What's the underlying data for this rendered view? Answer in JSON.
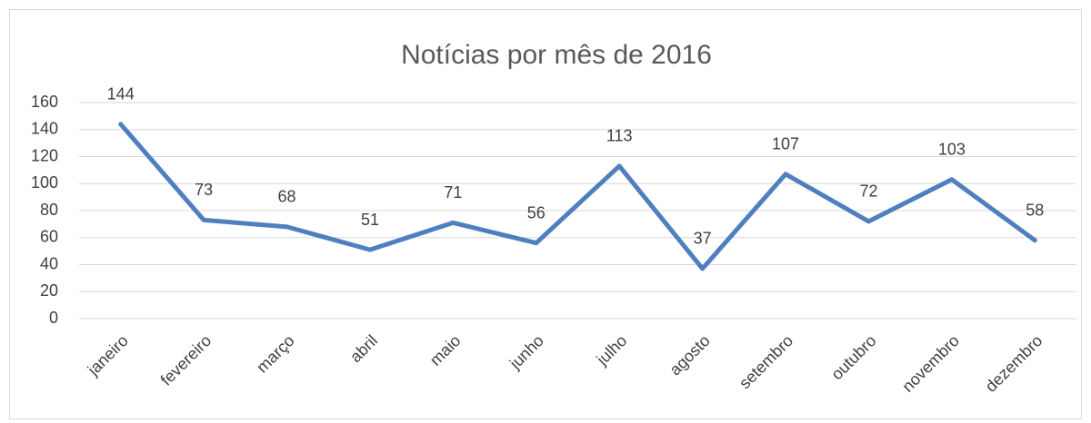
{
  "chart_data": {
    "type": "line",
    "title": "Notícias por mês de 2016",
    "categories": [
      "janeiro",
      "fevereiro",
      "março",
      "abril",
      "maio",
      "junho",
      "julho",
      "agosto",
      "setembro",
      "outubro",
      "novembro",
      "dezembro"
    ],
    "values": [
      144,
      73,
      68,
      51,
      71,
      56,
      113,
      37,
      107,
      72,
      103,
      58
    ],
    "color": "#4f7fbe",
    "ylim": [
      0,
      160
    ],
    "yticks": [
      0,
      20,
      40,
      60,
      80,
      100,
      120,
      140,
      160
    ],
    "grid": true
  }
}
